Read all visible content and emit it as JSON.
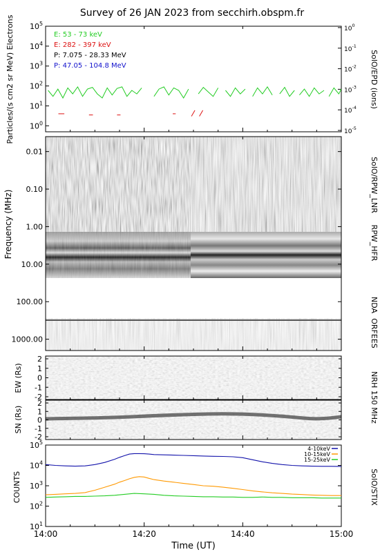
{
  "title": "Survey of 26 JAN 2023 from secchirh.obspm.fr",
  "time_axis": {
    "label": "Time (UT)",
    "ticks": [
      "14:00",
      "14:20",
      "14:40",
      "15:00"
    ],
    "start_minutes": 0,
    "end_minutes": 60
  },
  "chart_data": [
    {
      "type": "line",
      "panel": "SolO/EPD",
      "title": "SolO/EPD (ions)",
      "ylabel": "Particles/(s cm2 sr MeV) Electrons",
      "y_scale": "log",
      "ylim": [
        0.5,
        100000
      ],
      "y_ticks": [
        "10^0",
        "10^1",
        "10^2",
        "10^3",
        "10^4",
        "10^5"
      ],
      "right_ticks": [
        "10^-5",
        "10^-4",
        "10^-3",
        "10^-2",
        "10^-1",
        "10^0"
      ],
      "legend": [
        {
          "label": "E: 53 - 73 keV",
          "color": "#22cc22"
        },
        {
          "label": "E: 282 - 397 keV",
          "color": "#dd1111"
        },
        {
          "label": "P: 7.075 - 28.33 MeV",
          "color": "#000000"
        },
        {
          "label": "P: 47.05 - 104.8 MeV",
          "color": "#1111cc"
        }
      ],
      "series": [
        {
          "name": "E: 53 - 73 keV",
          "color": "#22cc22",
          "segments": [
            [
              [
                0.5,
                60
              ],
              [
                1.5,
                30
              ],
              [
                2.5,
                70
              ],
              [
                3.5,
                25
              ],
              [
                4.5,
                80
              ],
              [
                5.5,
                40
              ],
              [
                6.5,
                90
              ],
              [
                7.5,
                30
              ],
              [
                8.5,
                70
              ],
              [
                9.5,
                85
              ],
              [
                10.5,
                40
              ],
              [
                11.5,
                25
              ],
              [
                12.5,
                80
              ],
              [
                13.5,
                35
              ],
              [
                14.5,
                75
              ],
              [
                15.5,
                90
              ],
              [
                16.5,
                30
              ],
              [
                17.5,
                60
              ],
              [
                18.5,
                40
              ],
              [
                19.5,
                80
              ]
            ],
            [
              [
                22,
                30
              ],
              [
                23,
                70
              ],
              [
                24,
                90
              ],
              [
                25,
                35
              ],
              [
                26,
                80
              ],
              [
                27,
                60
              ],
              [
                28,
                25
              ],
              [
                29,
                70
              ]
            ],
            [
              [
                31,
                40
              ],
              [
                32,
                85
              ],
              [
                33,
                50
              ],
              [
                34,
                30
              ],
              [
                35,
                80
              ]
            ],
            [
              [
                36.5,
                60
              ],
              [
                37.5,
                30
              ],
              [
                38.5,
                80
              ],
              [
                39.5,
                40
              ],
              [
                40.5,
                70
              ]
            ],
            [
              [
                42,
                30
              ],
              [
                43,
                80
              ],
              [
                44,
                40
              ],
              [
                45,
                90
              ],
              [
                46,
                35
              ]
            ],
            [
              [
                47.5,
                40
              ],
              [
                48.5,
                85
              ],
              [
                49.5,
                30
              ],
              [
                50.5,
                60
              ]
            ],
            [
              [
                51.5,
                35
              ],
              [
                52.5,
                70
              ],
              [
                53.5,
                30
              ],
              [
                54.5,
                80
              ],
              [
                55.5,
                40
              ],
              [
                56.5,
                60
              ]
            ],
            [
              [
                57.5,
                30
              ],
              [
                58.5,
                80
              ],
              [
                59.5,
                40
              ],
              [
                60,
                70
              ]
            ]
          ]
        },
        {
          "name": "E: 282 - 397 keV",
          "color": "#dd1111",
          "segments": [
            [
              [
                2.6,
                4
              ],
              [
                3.8,
                4
              ]
            ],
            [
              [
                8.8,
                3.5
              ],
              [
                9.6,
                3.5
              ]
            ],
            [
              [
                14.5,
                3.5
              ],
              [
                15.2,
                3.5
              ]
            ],
            [
              [
                25.8,
                4
              ],
              [
                26.4,
                4
              ]
            ],
            [
              [
                29.6,
                3
              ],
              [
                30.3,
                6
              ]
            ],
            [
              [
                31.2,
                3
              ],
              [
                31.9,
                6
              ]
            ]
          ]
        }
      ]
    },
    {
      "type": "heatmap",
      "panel": "RPW_LNR / RPW_HFR / NDA / ORFEES",
      "ylabel": "Frequency (MHz)",
      "y_scale": "log",
      "ylim": [
        0.004,
        2000
      ],
      "y_ticks": [
        "0.01",
        "0.10",
        "1.00",
        "10.00",
        "100.00",
        "1000.00"
      ],
      "right_labels": [
        "SolO/RPW_LNR",
        "RPW_HFR",
        "NDA",
        "ORFEES"
      ]
    },
    {
      "type": "heatmap",
      "panel": "NRH 150 MHz",
      "right_label": "NRH 150 MHz",
      "subpanels": [
        {
          "ylabel": "EW (Rs)",
          "y_ticks": [
            "2",
            "1",
            "0",
            "-1",
            "-2"
          ]
        },
        {
          "ylabel": "SN (Rs)",
          "y_ticks": [
            "2",
            "1",
            "0",
            "-1",
            "-2"
          ]
        }
      ]
    },
    {
      "type": "line",
      "panel": "SolO/STIX",
      "title": "SolO/STIX",
      "ylabel": "COUNTS",
      "y_scale": "log",
      "ylim": [
        10,
        100000
      ],
      "y_ticks": [
        "10^1",
        "10^2",
        "10^3",
        "10^4",
        "10^5"
      ],
      "series": [
        {
          "name": "4-10keV",
          "color": "#1111aa",
          "x": [
            0,
            2,
            4,
            6,
            8,
            10,
            12,
            14,
            15,
            16,
            17,
            18,
            19,
            20,
            21,
            22,
            24,
            26,
            28,
            30,
            32,
            34,
            36,
            38,
            40,
            42,
            44,
            46,
            48,
            50,
            52,
            54,
            56,
            58,
            60
          ],
          "y": [
            11000,
            10000,
            9500,
            9200,
            9500,
            11000,
            14000,
            20000,
            25000,
            30000,
            36000,
            38000,
            38000,
            37500,
            36000,
            34000,
            33000,
            32000,
            31000,
            30000,
            29000,
            28000,
            27500,
            26500,
            24000,
            19000,
            15000,
            12500,
            11000,
            10000,
            9500,
            9200,
            9000,
            9000,
            8800
          ]
        },
        {
          "name": "10-15keV",
          "color": "#ff9900",
          "x": [
            0,
            2,
            4,
            6,
            8,
            10,
            12,
            14,
            15,
            16,
            17,
            18,
            19,
            20,
            21,
            22,
            24,
            26,
            28,
            30,
            32,
            34,
            36,
            38,
            40,
            42,
            44,
            46,
            48,
            50,
            52,
            54,
            56,
            58,
            60
          ],
          "y": [
            360,
            380,
            400,
            420,
            460,
            600,
            850,
            1200,
            1500,
            1800,
            2200,
            2600,
            2800,
            2700,
            2300,
            2000,
            1700,
            1500,
            1300,
            1150,
            1000,
            950,
            850,
            750,
            650,
            560,
            500,
            450,
            420,
            390,
            370,
            350,
            340,
            330,
            330
          ]
        },
        {
          "name": "15-25keV",
          "color": "#22cc22",
          "x": [
            0,
            2,
            4,
            6,
            8,
            10,
            12,
            14,
            16,
            18,
            20,
            22,
            24,
            26,
            28,
            30,
            32,
            34,
            36,
            38,
            40,
            42,
            44,
            46,
            48,
            50,
            52,
            54,
            56,
            58,
            60
          ],
          "y": [
            270,
            280,
            290,
            300,
            300,
            310,
            320,
            340,
            380,
            420,
            400,
            380,
            340,
            320,
            310,
            300,
            290,
            290,
            280,
            280,
            270,
            270,
            280,
            270,
            270,
            260,
            260,
            260,
            250,
            250,
            250
          ]
        }
      ]
    }
  ]
}
